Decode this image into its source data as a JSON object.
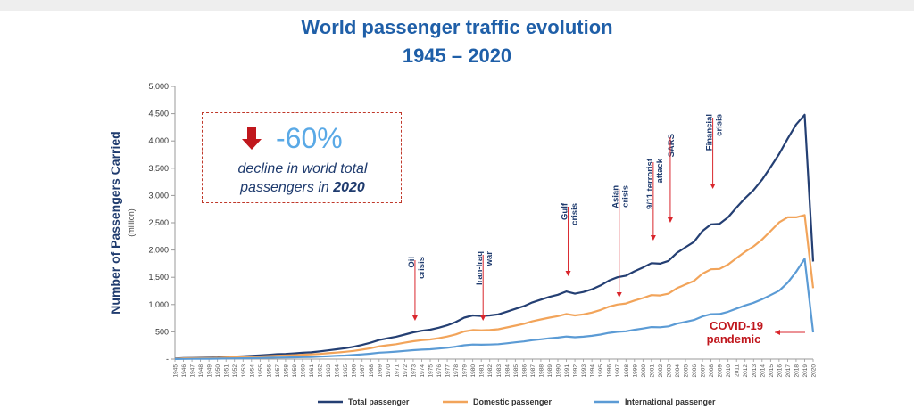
{
  "title_line1": "World passenger traffic evolution",
  "title_line2": "1945 – 2020",
  "callout": {
    "percent": "-60%",
    "text_before": "decline in world total passengers in",
    "year": "2020"
  },
  "colors": {
    "total": "#243f73",
    "domestic": "#f2a45a",
    "international": "#5b9bd5",
    "event_arrow": "#d9262c",
    "title": "#1f5fa8"
  },
  "chart_data": {
    "type": "line",
    "title": "World passenger traffic evolution 1945 – 2020",
    "xlabel": "",
    "ylabel": "Number of Passengers Carried",
    "ylabel_unit": "(million)",
    "ylim": [
      0,
      5000
    ],
    "yticks": [
      0,
      500,
      1000,
      1500,
      2000,
      2500,
      3000,
      3500,
      4000,
      4500,
      5000
    ],
    "ytick_labels": [
      "-",
      "500",
      "1,000",
      "1,500",
      "2,000",
      "2,500",
      "3,000",
      "3,500",
      "4,000",
      "4,500",
      "5,000"
    ],
    "x": [
      1945,
      1946,
      1947,
      1948,
      1949,
      1950,
      1951,
      1952,
      1953,
      1954,
      1955,
      1956,
      1957,
      1958,
      1959,
      1960,
      1961,
      1962,
      1963,
      1964,
      1965,
      1966,
      1967,
      1968,
      1969,
      1970,
      1971,
      1972,
      1973,
      1974,
      1975,
      1976,
      1977,
      1978,
      1979,
      1980,
      1981,
      1982,
      1983,
      1984,
      1985,
      1986,
      1987,
      1988,
      1989,
      1990,
      1991,
      1992,
      1993,
      1994,
      1995,
      1996,
      1997,
      1998,
      1999,
      2000,
      2001,
      2002,
      2003,
      2004,
      2005,
      2006,
      2007,
      2008,
      2009,
      2010,
      2011,
      2012,
      2013,
      2014,
      2015,
      2016,
      2017,
      2018,
      2019,
      2020
    ],
    "series": [
      {
        "name": "Total passenger",
        "values": [
          9,
          18,
          21,
          24,
          27,
          31,
          40,
          46,
          52,
          59,
          68,
          79,
          90,
          95,
          105,
          116,
          125,
          140,
          160,
          180,
          200,
          225,
          260,
          300,
          350,
          380,
          410,
          450,
          490,
          520,
          540,
          575,
          620,
          680,
          760,
          800,
          790,
          800,
          820,
          870,
          920,
          970,
          1040,
          1090,
          1140,
          1180,
          1240,
          1200,
          1230,
          1280,
          1350,
          1440,
          1500,
          1530,
          1610,
          1680,
          1760,
          1750,
          1800,
          1950,
          2050,
          2150,
          2350,
          2470,
          2480,
          2600,
          2780,
          2950,
          3100,
          3290,
          3520,
          3760,
          4040,
          4300,
          4480,
          1790
        ]
      },
      {
        "name": "Domestic passenger",
        "values": [
          7,
          14,
          16,
          18,
          20,
          23,
          29,
          33,
          37,
          42,
          48,
          55,
          62,
          66,
          72,
          80,
          86,
          95,
          108,
          120,
          134,
          150,
          173,
          200,
          233,
          254,
          273,
          300,
          327,
          347,
          360,
          383,
          413,
          453,
          507,
          533,
          527,
          533,
          547,
          580,
          613,
          647,
          693,
          727,
          760,
          787,
          827,
          800,
          820,
          853,
          900,
          960,
          1000,
          1020,
          1073,
          1120,
          1173,
          1167,
          1200,
          1300,
          1367,
          1433,
          1567,
          1647,
          1653,
          1733,
          1853,
          1967,
          2067,
          2193,
          2347,
          2507,
          2600,
          2600,
          2640,
          1300
        ]
      },
      {
        "name": "International passenger",
        "values": [
          2,
          4,
          5,
          6,
          7,
          8,
          11,
          13,
          15,
          17,
          20,
          24,
          28,
          29,
          33,
          36,
          39,
          45,
          52,
          60,
          66,
          75,
          87,
          100,
          117,
          126,
          137,
          150,
          163,
          173,
          180,
          192,
          207,
          227,
          253,
          267,
          263,
          267,
          273,
          290,
          307,
          323,
          347,
          363,
          380,
          393,
          413,
          400,
          410,
          427,
          450,
          480,
          500,
          510,
          537,
          560,
          587,
          583,
          600,
          650,
          683,
          717,
          783,
          823,
          827,
          867,
          927,
          983,
          1033,
          1097,
          1173,
          1253,
          1400,
          1600,
          1840,
          490
        ]
      }
    ],
    "annotations": [
      {
        "label": "Oil crisis",
        "year": 1973
      },
      {
        "label": "Iran-Iraq war",
        "year": 1981
      },
      {
        "label": "Gulf crisis",
        "year": 1991
      },
      {
        "label": "Asian crisis",
        "year": 1997
      },
      {
        "label": "9/11 terrorist attack",
        "year": 2001
      },
      {
        "label": "SARS",
        "year": 2003
      },
      {
        "label": "Financial crisis",
        "year": 2008
      },
      {
        "label": "COVID-19 pandemic",
        "year": 2020
      }
    ],
    "legend": [
      "Total passenger",
      "Domestic passenger",
      "International passenger"
    ],
    "legend_position": "bottom-center",
    "grid": false
  }
}
